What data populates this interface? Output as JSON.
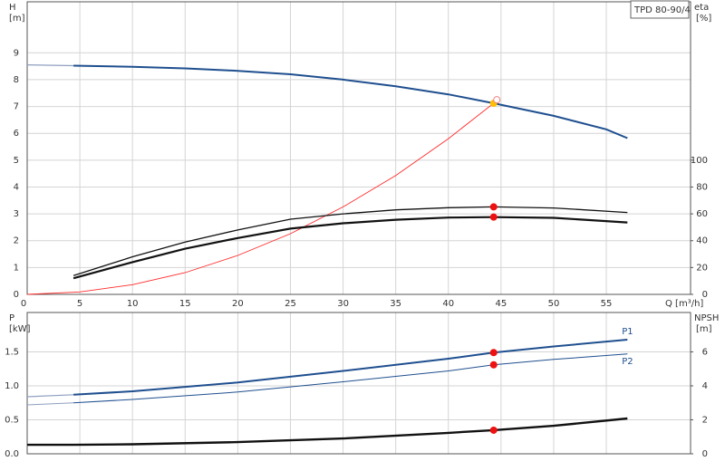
{
  "chart_data": [
    {
      "type": "line",
      "model": "TPD 80-90/4",
      "y_label": "H",
      "y_unit": "[m]",
      "y2_label": "eta",
      "y2_unit": "[%]",
      "x_label": "Q [m³/h]",
      "xlim": [
        0,
        63
      ],
      "xticks": [
        0,
        5,
        10,
        15,
        20,
        25,
        30,
        35,
        40,
        45,
        50,
        55
      ],
      "ylim": [
        0,
        10.9
      ],
      "yticks": [
        0,
        1,
        2,
        3,
        4,
        5,
        6,
        7,
        8,
        9
      ],
      "y2lim": [
        0,
        218
      ],
      "y2ticks": [
        0,
        20,
        40,
        60,
        80,
        100
      ],
      "grid": true,
      "series": [
        {
          "color": "#8e9fc0",
          "width": 1.2,
          "x": [
            0,
            4.4
          ],
          "values": [
            8.55,
            8.52
          ]
        },
        {
          "color": "#1f4f8f",
          "width": 2,
          "x": [
            4.4,
            10,
            15,
            20,
            25,
            30,
            35,
            40,
            44.3,
            50,
            55,
            57
          ],
          "values": [
            8.52,
            8.48,
            8.42,
            8.33,
            8.2,
            8.0,
            7.75,
            7.45,
            7.12,
            6.65,
            6.15,
            5.82
          ]
        },
        {
          "color": "#ff2a2a",
          "width": 0.9,
          "x": [
            0,
            5,
            10,
            15,
            20,
            25,
            30,
            35,
            40,
            44.3
          ],
          "values": [
            0,
            0.09,
            0.36,
            0.81,
            1.45,
            2.26,
            3.26,
            4.43,
            5.8,
            7.12
          ]
        },
        {
          "color": "#111111",
          "width": 1.3,
          "axis": "y2",
          "x": [
            4.4,
            10,
            15,
            20,
            25,
            30,
            35,
            40,
            44.3,
            50,
            57
          ],
          "values": [
            14,
            28,
            39,
            48,
            56,
            60,
            63,
            64.6,
            65.2,
            64.4,
            61
          ]
        },
        {
          "color": "#111111",
          "width": 2.2,
          "axis": "y2",
          "x": [
            4.4,
            10,
            15,
            20,
            25,
            30,
            35,
            40,
            44.3,
            50,
            57
          ],
          "values": [
            12,
            24,
            34,
            42,
            49,
            53,
            55.6,
            57.2,
            57.6,
            57,
            53.6
          ]
        }
      ],
      "markers": [
        {
          "x": 44.3,
          "y": 7.12,
          "color": "#ffc000"
        },
        {
          "x": 44.6,
          "y": 7.25,
          "color": "#f08080",
          "hollow": true
        },
        {
          "x": 44.3,
          "y": 65.2,
          "color": "#ee1111",
          "axis": "y2"
        },
        {
          "x": 44.3,
          "y": 57.6,
          "color": "#ee1111",
          "axis": "y2"
        }
      ]
    },
    {
      "type": "line",
      "y_label": "P",
      "y_unit": "[kW]",
      "y2_label": "NPSH",
      "y2_unit": "[m]",
      "xlim": [
        0,
        63
      ],
      "xticks": [
        0,
        5,
        10,
        15,
        20,
        25,
        30,
        35,
        40,
        45,
        50,
        55
      ],
      "ylim": [
        0,
        2.08
      ],
      "yticks": [
        {
          "value": 0,
          "label": "0.0"
        },
        0.5,
        {
          "value": 1,
          "label": "1.0"
        },
        1.5
      ],
      "y2lim": [
        0,
        8.32
      ],
      "y2ticks": [
        0,
        2,
        4,
        6
      ],
      "grid": true,
      "series": [
        {
          "color": "#8e9fc0",
          "width": 1.2,
          "x": [
            0,
            4.4
          ],
          "values": [
            0.84,
            0.87
          ]
        },
        {
          "name": "P1",
          "color": "#1f4f8f",
          "width": 2,
          "x": [
            4.4,
            10,
            20,
            30,
            40,
            44.3,
            50,
            57
          ],
          "values": [
            0.87,
            0.92,
            1.05,
            1.22,
            1.4,
            1.49,
            1.58,
            1.68
          ]
        },
        {
          "color": "#8e9fc0",
          "width": 1,
          "x": [
            0,
            4.4
          ],
          "values": [
            0.72,
            0.75
          ]
        },
        {
          "name": "P2",
          "color": "#1f4f8f",
          "width": 1,
          "x": [
            4.4,
            10,
            20,
            30,
            40,
            44.3,
            50,
            57
          ],
          "values": [
            0.75,
            0.8,
            0.91,
            1.06,
            1.22,
            1.31,
            1.39,
            1.47
          ]
        },
        {
          "color": "#111111",
          "width": 2.4,
          "axis": "y2",
          "x": [
            0,
            4.4,
            10,
            20,
            30,
            40,
            44.3,
            50,
            57
          ],
          "values": [
            0.53,
            0.53,
            0.56,
            0.69,
            0.9,
            1.23,
            1.39,
            1.65,
            2.08
          ]
        }
      ],
      "markers": [
        {
          "x": 44.3,
          "y": 1.49,
          "color": "#ee1111"
        },
        {
          "x": 44.3,
          "y": 1.31,
          "color": "#ee1111"
        },
        {
          "x": 44.3,
          "y": 1.39,
          "color": "#ee1111",
          "axis": "y2"
        }
      ]
    }
  ]
}
